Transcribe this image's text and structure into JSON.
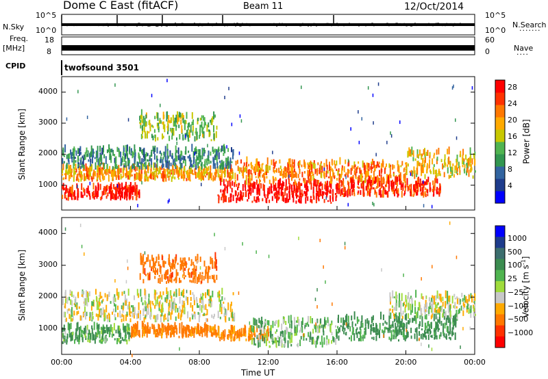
{
  "header": {
    "title": "Dome C East (fitACF)",
    "beam": "Beam 11",
    "date": "12/Oct/2014"
  },
  "top_panels": {
    "nsky_label": "N.Sky",
    "nsearch_label": "N.Search",
    "nsky_ticks": [
      "10^5",
      "10^0"
    ],
    "freq_label_1": "Freq.",
    "freq_label_2": "[MHz]",
    "freq_ticks": [
      "18",
      "8"
    ],
    "nave_label": "Nave",
    "nave_ticks": [
      "60",
      "0"
    ],
    "cpid_label": "CPID",
    "cpid_value": "twofsound 3501"
  },
  "colors": {
    "power": [
      "#0000ff",
      "#1e3c8c",
      "#3264a0",
      "#329650",
      "#50b450",
      "#c8c800",
      "#ffaa00",
      "#ff7800",
      "#ff3200",
      "#ff0000"
    ],
    "velocity": [
      "#0000ff",
      "#1e3c8c",
      "#3c6e6e",
      "#3c8c50",
      "#50b450",
      "#a0dc3c",
      "#c8c8c8",
      "#ffaa00",
      "#ff7800",
      "#ff3200",
      "#ff0000"
    ]
  },
  "chart_data": [
    {
      "type": "heatmap",
      "title": "",
      "xlabel": "Time UT",
      "ylabel": "Slant Range [km]",
      "x_ticks": [
        "00:00",
        "04:00",
        "08:00",
        "12:00",
        "16:00",
        "20:00",
        "00:00"
      ],
      "x_range_hours": [
        0,
        24
      ],
      "y_ticks": [
        1000,
        2000,
        3000,
        4000
      ],
      "ylim": [
        200,
        4500
      ],
      "colorbar": {
        "label": "Power [dB]",
        "ticks": [
          4,
          8,
          12,
          16,
          20,
          24,
          28
        ],
        "range": [
          0,
          30
        ]
      },
      "echo_bands": [
        {
          "t_start": 0,
          "t_end": 4.5,
          "r_low": 500,
          "r_high": 900,
          "value": 28
        },
        {
          "t_start": 0,
          "t_end": 10,
          "r_low": 1100,
          "r_high": 1500,
          "value": 20
        },
        {
          "t_start": 0,
          "t_end": 10,
          "r_low": 1500,
          "r_high": 2100,
          "value": 10
        },
        {
          "t_start": 4.5,
          "t_end": 9,
          "r_low": 2400,
          "r_high": 3200,
          "value": 14
        },
        {
          "t_start": 9,
          "t_end": 16,
          "r_low": 400,
          "r_high": 1000,
          "value": 29
        },
        {
          "t_start": 10,
          "t_end": 20,
          "r_low": 1000,
          "r_high": 1700,
          "value": 22
        },
        {
          "t_start": 16,
          "t_end": 22,
          "r_low": 600,
          "r_high": 1100,
          "value": 26
        },
        {
          "t_start": 20,
          "t_end": 24,
          "r_low": 1200,
          "r_high": 2000,
          "value": 18
        }
      ]
    },
    {
      "type": "heatmap",
      "title": "",
      "xlabel": "Time UT",
      "ylabel": "Slant Range [km]",
      "x_ticks": [
        "00:00",
        "04:00",
        "08:00",
        "12:00",
        "16:00",
        "20:00",
        "00:00"
      ],
      "x_range_hours": [
        0,
        24
      ],
      "y_ticks": [
        1000,
        2000,
        3000,
        4000
      ],
      "ylim": [
        200,
        4500
      ],
      "colorbar": {
        "label": "Velocity [m s^-1]",
        "ticks": [
          1000,
          500,
          100,
          25,
          -25,
          -100,
          -500,
          -1000
        ]
      },
      "echo_bands": [
        {
          "t_start": 0,
          "t_end": 4,
          "r_low": 500,
          "r_high": 1000,
          "value": 100
        },
        {
          "t_start": 0,
          "t_end": 10,
          "r_low": 1200,
          "r_high": 2100,
          "value": 0
        },
        {
          "t_start": 4,
          "t_end": 9,
          "r_low": 700,
          "r_high": 1000,
          "value": -150
        },
        {
          "t_start": 4.5,
          "t_end": 9,
          "r_low": 2400,
          "r_high": 3200,
          "value": -200
        },
        {
          "t_start": 9,
          "t_end": 12,
          "r_low": 600,
          "r_high": 900,
          "value": -120
        },
        {
          "t_start": 11,
          "t_end": 16,
          "r_low": 400,
          "r_high": 1200,
          "value": 60
        },
        {
          "t_start": 16,
          "t_end": 23,
          "r_low": 600,
          "r_high": 1300,
          "value": 150
        },
        {
          "t_start": 19,
          "t_end": 24,
          "r_low": 1300,
          "r_high": 2000,
          "value": 10
        }
      ]
    }
  ]
}
